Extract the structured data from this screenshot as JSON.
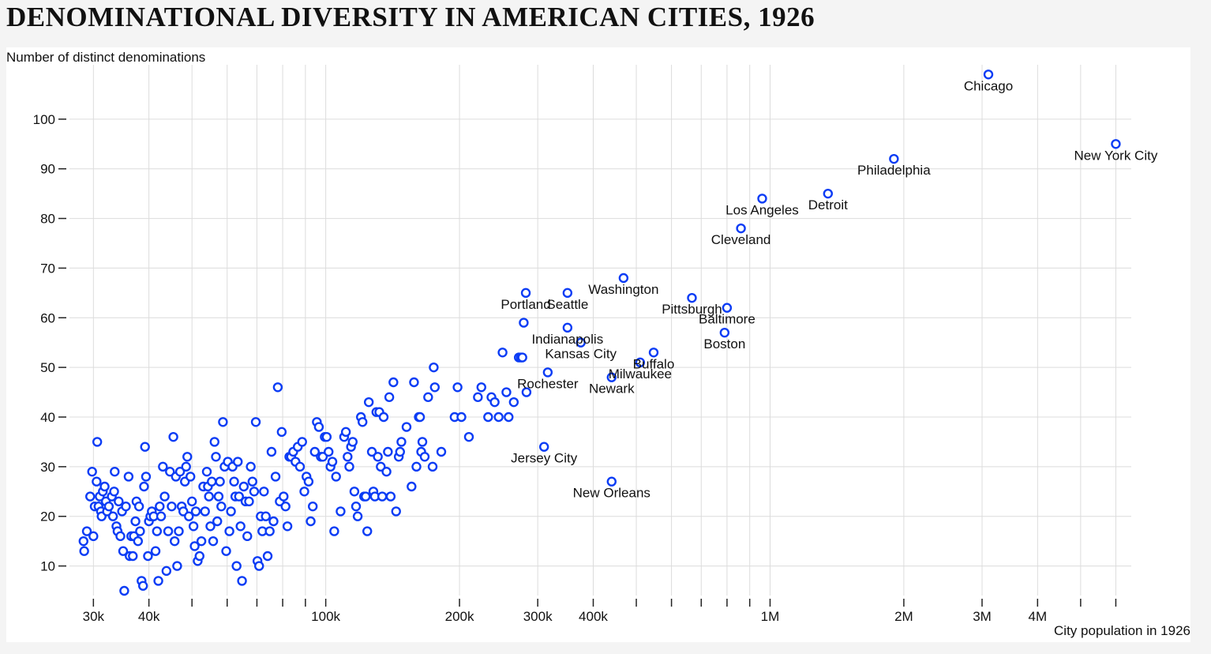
{
  "title": "DENOMINATIONAL DIVERSITY IN AMERICAN CITIES, 1926",
  "chart_data": {
    "type": "scatter",
    "title": "DENOMINATIONAL DIVERSITY IN AMERICAN CITIES, 1926",
    "xlabel": "City population in 1926",
    "ylabel": "Number of distinct denominations",
    "xscale": "log",
    "xlim": [
      26500,
      6500000
    ],
    "ylim": [
      5,
      110
    ],
    "grid": true,
    "color": "#0b3cf5",
    "x_ticks": [
      30000,
      40000,
      50000,
      60000,
      70000,
      80000,
      90000,
      100000,
      200000,
      300000,
      400000,
      500000,
      600000,
      700000,
      800000,
      900000,
      1000000,
      2000000,
      3000000,
      4000000,
      5000000,
      6000000
    ],
    "x_tick_labels": {
      "30000": "30k",
      "40000": "40k",
      "100000": "100k",
      "200000": "200k",
      "300000": "300k",
      "400000": "400k",
      "1000000": "1M",
      "2000000": "2M",
      "3000000": "3M",
      "4000000": "4M"
    },
    "y_ticks": [
      10,
      20,
      30,
      40,
      50,
      60,
      70,
      80,
      90,
      100
    ],
    "labeled_points": [
      {
        "name": "Chicago",
        "x": 3100000,
        "y": 109
      },
      {
        "name": "New York City",
        "x": 6000000,
        "y": 95
      },
      {
        "name": "Philadelphia",
        "x": 1900000,
        "y": 92
      },
      {
        "name": "Detroit",
        "x": 1350000,
        "y": 85
      },
      {
        "name": "Los Angeles",
        "x": 960000,
        "y": 84
      },
      {
        "name": "Cleveland",
        "x": 860000,
        "y": 78
      },
      {
        "name": "Washington",
        "x": 468000,
        "y": 68
      },
      {
        "name": "Portland",
        "x": 282000,
        "y": 65
      },
      {
        "name": "Seattle",
        "x": 350000,
        "y": 65
      },
      {
        "name": "Pittsburgh",
        "x": 667000,
        "y": 64
      },
      {
        "name": "Baltimore",
        "x": 800000,
        "y": 62
      },
      {
        "name": "Indianapolis",
        "x": 350000,
        "y": 58
      },
      {
        "name": "Boston",
        "x": 790000,
        "y": 57
      },
      {
        "name": "Kansas City",
        "x": 375000,
        "y": 55
      },
      {
        "name": "Buffalo",
        "x": 547000,
        "y": 53
      },
      {
        "name": "Milwaukee",
        "x": 510000,
        "y": 51
      },
      {
        "name": "Rochester",
        "x": 316000,
        "y": 49
      },
      {
        "name": "Newark",
        "x": 440000,
        "y": 48
      },
      {
        "name": "Jersey City",
        "x": 310000,
        "y": 34
      },
      {
        "name": "New Orleans",
        "x": 440000,
        "y": 27
      }
    ],
    "points": [
      [
        28500,
        15
      ],
      [
        28600,
        13
      ],
      [
        29000,
        17
      ],
      [
        29500,
        24
      ],
      [
        29800,
        29
      ],
      [
        30000,
        16
      ],
      [
        30200,
        22
      ],
      [
        30500,
        27
      ],
      [
        30600,
        35
      ],
      [
        30800,
        22
      ],
      [
        31000,
        24
      ],
      [
        31200,
        21
      ],
      [
        31300,
        20
      ],
      [
        31500,
        25
      ],
      [
        31800,
        26
      ],
      [
        32000,
        23
      ],
      [
        32200,
        21
      ],
      [
        32500,
        22
      ],
      [
        33000,
        24
      ],
      [
        33200,
        20
      ],
      [
        33400,
        25
      ],
      [
        33500,
        29
      ],
      [
        33800,
        18
      ],
      [
        34000,
        17
      ],
      [
        34200,
        23
      ],
      [
        34500,
        16
      ],
      [
        34800,
        21
      ],
      [
        35000,
        13
      ],
      [
        35200,
        5
      ],
      [
        35500,
        22
      ],
      [
        36000,
        28
      ],
      [
        36200,
        12
      ],
      [
        36500,
        16
      ],
      [
        36800,
        12
      ],
      [
        37000,
        16
      ],
      [
        37300,
        19
      ],
      [
        37500,
        23
      ],
      [
        37800,
        15
      ],
      [
        38000,
        22
      ],
      [
        38200,
        17
      ],
      [
        38500,
        7
      ],
      [
        38800,
        6
      ],
      [
        39000,
        26
      ],
      [
        39200,
        34
      ],
      [
        39400,
        28
      ],
      [
        39800,
        12
      ],
      [
        40000,
        19
      ],
      [
        40300,
        20
      ],
      [
        40600,
        21
      ],
      [
        41000,
        20
      ],
      [
        41400,
        13
      ],
      [
        41700,
        17
      ],
      [
        42000,
        7
      ],
      [
        42300,
        22
      ],
      [
        42600,
        20
      ],
      [
        43000,
        30
      ],
      [
        43400,
        24
      ],
      [
        43800,
        9
      ],
      [
        44200,
        17
      ],
      [
        44600,
        29
      ],
      [
        45000,
        22
      ],
      [
        45400,
        36
      ],
      [
        45700,
        15
      ],
      [
        46000,
        28
      ],
      [
        46300,
        10
      ],
      [
        46700,
        17
      ],
      [
        47000,
        29
      ],
      [
        47400,
        22
      ],
      [
        47800,
        21
      ],
      [
        48200,
        27
      ],
      [
        48500,
        30
      ],
      [
        48800,
        32
      ],
      [
        49200,
        20
      ],
      [
        49600,
        28
      ],
      [
        50000,
        23
      ],
      [
        50400,
        18
      ],
      [
        50700,
        14
      ],
      [
        51000,
        21
      ],
      [
        51500,
        11
      ],
      [
        52000,
        12
      ],
      [
        52500,
        15
      ],
      [
        53000,
        26
      ],
      [
        53500,
        21
      ],
      [
        54000,
        29
      ],
      [
        54300,
        26
      ],
      [
        54600,
        24
      ],
      [
        55000,
        18
      ],
      [
        55400,
        27
      ],
      [
        55800,
        15
      ],
      [
        56200,
        35
      ],
      [
        56600,
        32
      ],
      [
        57000,
        19
      ],
      [
        57400,
        24
      ],
      [
        57800,
        27
      ],
      [
        58200,
        22
      ],
      [
        58700,
        39
      ],
      [
        59200,
        30
      ],
      [
        59700,
        13
      ],
      [
        60200,
        31
      ],
      [
        60700,
        17
      ],
      [
        61200,
        21
      ],
      [
        61700,
        30
      ],
      [
        62200,
        27
      ],
      [
        62600,
        24
      ],
      [
        63000,
        10
      ],
      [
        63400,
        31
      ],
      [
        63800,
        24
      ],
      [
        64300,
        18
      ],
      [
        64800,
        7
      ],
      [
        65400,
        26
      ],
      [
        66000,
        23
      ],
      [
        66600,
        16
      ],
      [
        67200,
        23
      ],
      [
        67800,
        30
      ],
      [
        68400,
        27
      ],
      [
        69000,
        25
      ],
      [
        69600,
        39
      ],
      [
        70200,
        11
      ],
      [
        70800,
        10
      ],
      [
        71400,
        20
      ],
      [
        72000,
        17
      ],
      [
        72600,
        25
      ],
      [
        73300,
        20
      ],
      [
        74000,
        12
      ],
      [
        74800,
        17
      ],
      [
        75500,
        33
      ],
      [
        76300,
        19
      ],
      [
        77100,
        28
      ],
      [
        78000,
        46
      ],
      [
        78800,
        23
      ],
      [
        79600,
        37
      ],
      [
        80400,
        24
      ],
      [
        81200,
        22
      ],
      [
        82000,
        18
      ],
      [
        82800,
        32
      ],
      [
        83600,
        32
      ],
      [
        84500,
        33
      ],
      [
        85500,
        31
      ],
      [
        86500,
        34
      ],
      [
        87500,
        30
      ],
      [
        88500,
        35
      ],
      [
        89500,
        25
      ],
      [
        90500,
        28
      ],
      [
        91500,
        27
      ],
      [
        92500,
        19
      ],
      [
        93500,
        22
      ],
      [
        94500,
        33
      ],
      [
        95500,
        39
      ],
      [
        96500,
        38
      ],
      [
        97500,
        32
      ],
      [
        98500,
        32
      ],
      [
        99500,
        36
      ],
      [
        100500,
        36
      ],
      [
        101500,
        33
      ],
      [
        102500,
        30
      ],
      [
        103500,
        31
      ],
      [
        104500,
        17
      ],
      [
        105500,
        28
      ],
      [
        108000,
        21
      ],
      [
        110000,
        36
      ],
      [
        111000,
        37
      ],
      [
        112000,
        32
      ],
      [
        113000,
        30
      ],
      [
        114000,
        34
      ],
      [
        115000,
        35
      ],
      [
        116000,
        25
      ],
      [
        117000,
        22
      ],
      [
        118000,
        20
      ],
      [
        120000,
        40
      ],
      [
        121000,
        39
      ],
      [
        122000,
        24
      ],
      [
        123000,
        24
      ],
      [
        124000,
        17
      ],
      [
        125000,
        43
      ],
      [
        127000,
        33
      ],
      [
        128000,
        25
      ],
      [
        129000,
        24
      ],
      [
        130000,
        41
      ],
      [
        131000,
        32
      ],
      [
        132000,
        41
      ],
      [
        133000,
        30
      ],
      [
        134000,
        24
      ],
      [
        135000,
        40
      ],
      [
        137000,
        29
      ],
      [
        138000,
        33
      ],
      [
        139000,
        44
      ],
      [
        140000,
        24
      ],
      [
        142000,
        47
      ],
      [
        144000,
        21
      ],
      [
        146000,
        32
      ],
      [
        147000,
        33
      ],
      [
        148000,
        35
      ],
      [
        152000,
        38
      ],
      [
        156000,
        26
      ],
      [
        158000,
        47
      ],
      [
        160000,
        30
      ],
      [
        162000,
        40
      ],
      [
        163000,
        40
      ],
      [
        164000,
        33
      ],
      [
        165000,
        35
      ],
      [
        167000,
        32
      ],
      [
        170000,
        44
      ],
      [
        174000,
        30
      ],
      [
        175000,
        50
      ],
      [
        176000,
        46
      ],
      [
        182000,
        33
      ],
      [
        195000,
        40
      ],
      [
        198000,
        46
      ],
      [
        202000,
        40
      ],
      [
        210000,
        36
      ],
      [
        220000,
        44
      ],
      [
        224000,
        46
      ],
      [
        232000,
        40
      ],
      [
        236000,
        44
      ],
      [
        240000,
        43
      ],
      [
        245000,
        40
      ],
      [
        250000,
        53
      ],
      [
        255000,
        45
      ],
      [
        258000,
        40
      ],
      [
        265000,
        43
      ],
      [
        272000,
        52
      ],
      [
        275000,
        52
      ],
      [
        277000,
        52
      ],
      [
        279000,
        59
      ],
      [
        283000,
        45
      ]
    ]
  }
}
